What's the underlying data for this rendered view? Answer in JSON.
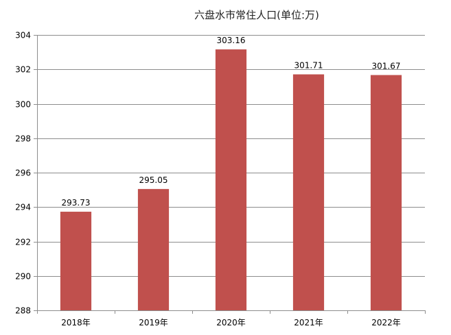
{
  "chart_data": {
    "type": "bar",
    "title": "六盘水市常住人口(单位:万)",
    "xlabel": "",
    "ylabel": "",
    "categories": [
      "2018年",
      "2019年",
      "2020年",
      "2021年",
      "2022年"
    ],
    "values": [
      293.73,
      295.05,
      303.16,
      301.71,
      301.67
    ],
    "value_labels": [
      "293.73",
      "295.05",
      "303.16",
      "301.71",
      "301.67"
    ],
    "ylim": [
      288,
      304
    ],
    "yticks": [
      288,
      290,
      292,
      294,
      296,
      298,
      300,
      302,
      304
    ],
    "grid": true,
    "legend": "none",
    "bar_color": "#c0504d"
  }
}
